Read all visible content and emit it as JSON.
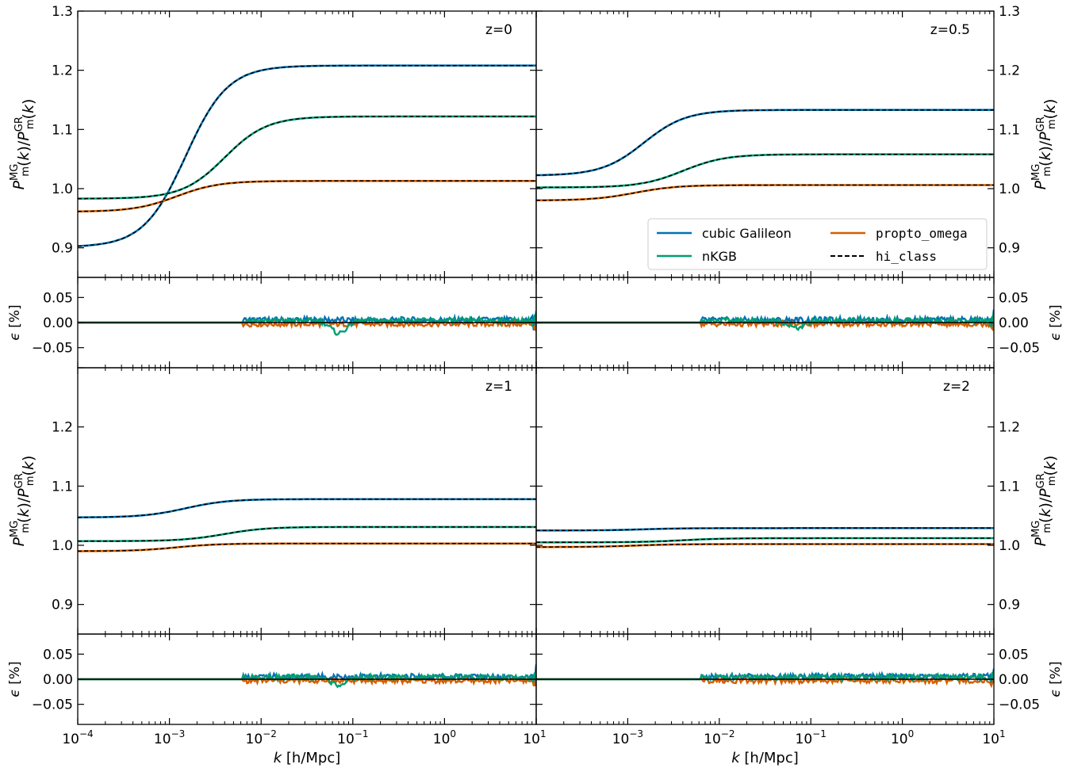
{
  "chart_data": {
    "type": "line",
    "x_scale": "log",
    "xlim": [
      0.0001,
      10
    ],
    "x_tick_labels": [
      {
        "base": "10",
        "exp": "−4"
      },
      {
        "base": "10",
        "exp": "−3"
      },
      {
        "base": "10",
        "exp": "−2"
      },
      {
        "base": "10",
        "exp": "−1"
      },
      {
        "base": "10",
        "exp": "0"
      },
      {
        "base": "10",
        "exp": "1"
      }
    ],
    "xlabel": {
      "k": "k",
      "rest": "[h/Mpc]"
    },
    "ratio_ylabel": "P_m^MG(k)/P_m^GR(k)",
    "ratio_ylim": [
      0.85,
      1.3
    ],
    "ratio_y_ticks": [
      "0.9",
      "1.0",
      "1.1",
      "1.2",
      "1.3"
    ],
    "eps_ylabel": {
      "sym": "ϵ",
      "unit": "[%]"
    },
    "eps_ylim": [
      -0.09,
      0.09
    ],
    "eps_y_ticks": [
      "−0.05",
      "0.00",
      "0.05"
    ],
    "legend": {
      "position": "lower-right of z=0.5 panel",
      "entries": [
        {
          "label": "cubic Galileon",
          "color": "#0072b2",
          "style": "solid",
          "mono": false
        },
        {
          "label": "propto_omega",
          "color": "#d55e00",
          "style": "solid",
          "mono": true
        },
        {
          "label": "nKGB",
          "color": "#009e73",
          "style": "solid",
          "mono": false
        },
        {
          "label": "hi_class",
          "color": "#000000",
          "style": "dashed",
          "mono": true
        }
      ]
    },
    "panels": [
      {
        "label": "z=0",
        "series": [
          {
            "name": "cubic Galileon",
            "low": 0.901,
            "high": 1.208,
            "k_mid": 0.0015
          },
          {
            "name": "nKGB",
            "low": 0.983,
            "high": 1.122,
            "k_mid": 0.004
          },
          {
            "name": "propto_omega",
            "low": 0.961,
            "high": 1.013,
            "k_mid": 0.0012
          }
        ]
      },
      {
        "label": "z=0.5",
        "series": [
          {
            "name": "cubic Galileon",
            "low": 1.022,
            "high": 1.133,
            "k_mid": 0.0015
          },
          {
            "name": "nKGB",
            "low": 1.002,
            "high": 1.058,
            "k_mid": 0.004
          },
          {
            "name": "propto_omega",
            "low": 0.98,
            "high": 1.006,
            "k_mid": 0.0012
          }
        ]
      },
      {
        "label": "z=1",
        "series": [
          {
            "name": "cubic Galileon",
            "low": 1.047,
            "high": 1.078,
            "k_mid": 0.0015
          },
          {
            "name": "nKGB",
            "low": 1.007,
            "high": 1.031,
            "k_mid": 0.004
          },
          {
            "name": "propto_omega",
            "low": 0.99,
            "high": 1.003,
            "k_mid": 0.0012
          }
        ]
      },
      {
        "label": "z=2",
        "series": [
          {
            "name": "cubic Galileon",
            "low": 1.025,
            "high": 1.029,
            "k_mid": 0.0015
          },
          {
            "name": "nKGB",
            "low": 1.005,
            "high": 1.012,
            "k_mid": 0.004
          },
          {
            "name": "propto_omega",
            "low": 0.997,
            "high": 1.002,
            "k_mid": 0.0012
          }
        ]
      }
    ],
    "residual_k_start": 0.0063,
    "residual_dip": {
      "series": "nKGB",
      "k": 0.07,
      "z0": -0.025,
      "z05": -0.015,
      "z1": -0.015,
      "z2": 0
    }
  }
}
